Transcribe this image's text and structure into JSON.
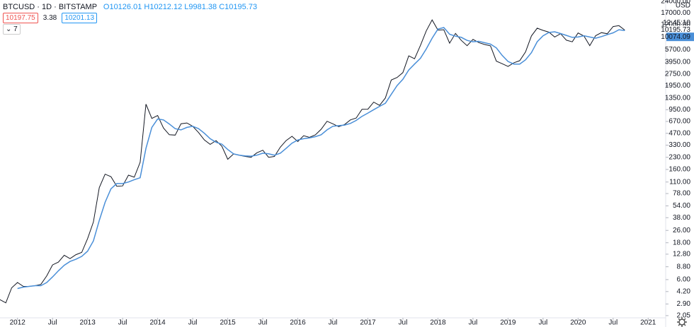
{
  "header": {
    "symbol": "BTCUSD · 1D · BITSTAMP",
    "open": "O10126.01",
    "high": "H10212.12",
    "low": "L9981.38",
    "close": "C10195.73",
    "bid": "10197.75",
    "spread": "3.38",
    "ask": "10201.13",
    "indicator_count": "7"
  },
  "chart_data": {
    "type": "line",
    "log_scale": true,
    "grid": false,
    "currency": "USD",
    "time": "12:45:10",
    "x": [
      "2011-10",
      "2011-11",
      "2011-12",
      "2012-01",
      "2012-02",
      "2012-03",
      "2012-04",
      "2012-05",
      "2012-06",
      "2012-07",
      "2012-08",
      "2012-09",
      "2012-10",
      "2012-11",
      "2012-12",
      "2013-01",
      "2013-02",
      "2013-03",
      "2013-04",
      "2013-05",
      "2013-06",
      "2013-07",
      "2013-08",
      "2013-09",
      "2013-10",
      "2013-11",
      "2013-12",
      "2014-01",
      "2014-02",
      "2014-03",
      "2014-04",
      "2014-05",
      "2014-06",
      "2014-07",
      "2014-08",
      "2014-09",
      "2014-10",
      "2014-11",
      "2014-12",
      "2015-01",
      "2015-02",
      "2015-03",
      "2015-04",
      "2015-05",
      "2015-06",
      "2015-07",
      "2015-08",
      "2015-09",
      "2015-10",
      "2015-11",
      "2015-12",
      "2016-01",
      "2016-02",
      "2016-03",
      "2016-04",
      "2016-05",
      "2016-06",
      "2016-07",
      "2016-08",
      "2016-09",
      "2016-10",
      "2016-11",
      "2016-12",
      "2017-01",
      "2017-02",
      "2017-03",
      "2017-04",
      "2017-05",
      "2017-06",
      "2017-07",
      "2017-08",
      "2017-09",
      "2017-10",
      "2017-11",
      "2017-12",
      "2018-01",
      "2018-02",
      "2018-03",
      "2018-04",
      "2018-05",
      "2018-06",
      "2018-07",
      "2018-08",
      "2018-09",
      "2018-10",
      "2018-11",
      "2018-12",
      "2019-01",
      "2019-02",
      "2019-03",
      "2019-04",
      "2019-05",
      "2019-06",
      "2019-07",
      "2019-08",
      "2019-09",
      "2019-10",
      "2019-11",
      "2019-12",
      "2020-01",
      "2020-02",
      "2020-03",
      "2020-04",
      "2020-05",
      "2020-06",
      "2020-07",
      "2020-08",
      "2020-09"
    ],
    "series": [
      {
        "color": "#131722",
        "values": [
          3.3,
          3.0,
          4.7,
          5.5,
          4.9,
          4.9,
          5.0,
          5.2,
          6.7,
          9.3,
          10.1,
          12.4,
          11.2,
          12.6,
          13.5,
          20.4,
          33.4,
          93,
          139,
          129,
          97,
          98,
          135,
          127,
          198,
          1120,
          732,
          800,
          550,
          450,
          445,
          625,
          640,
          580,
          480,
          385,
          338,
          378,
          320,
          217,
          254,
          244,
          236,
          230,
          263,
          284,
          230,
          236,
          311,
          378,
          430,
          368,
          437,
          416,
          448,
          531,
          673,
          624,
          573,
          609,
          700,
          742,
          963,
          965,
          1190,
          1080,
          1348,
          2300,
          2480,
          2870,
          4730,
          4340,
          6450,
          9950,
          13800,
          10200,
          10300,
          6900,
          9240,
          7490,
          6400,
          7730,
          7020,
          6630,
          6370,
          4040,
          3740,
          3450,
          3850,
          4100,
          5320,
          8570,
          10800,
          10100,
          9600,
          8300,
          9150,
          7550,
          7190,
          9350,
          8540,
          6410,
          8630,
          9450,
          9140,
          11330,
          11650,
          10195.73
        ]
      },
      {
        "color": "#4a8fd8",
        "values": [
          null,
          null,
          null,
          4.6,
          4.8,
          4.9,
          5.0,
          5.0,
          5.5,
          6.5,
          7.8,
          9.2,
          10.3,
          11.0,
          12.0,
          14,
          19,
          35,
          60,
          90,
          105,
          105,
          110,
          118,
          125,
          300,
          560,
          720,
          700,
          620,
          540,
          520,
          560,
          580,
          540,
          470,
          400,
          360,
          340,
          290,
          255,
          245,
          240,
          238,
          245,
          260,
          255,
          245,
          260,
          300,
          350,
          385,
          400,
          410,
          425,
          450,
          520,
          580,
          590,
          600,
          630,
          690,
          780,
          860,
          950,
          1050,
          1150,
          1500,
          1950,
          2350,
          3100,
          3700,
          4400,
          5800,
          8000,
          10500,
          11000,
          9000,
          8500,
          8200,
          7500,
          7200,
          7300,
          7000,
          6700,
          6000,
          4800,
          4000,
          3700,
          3700,
          4200,
          5200,
          7200,
          8600,
          9500,
          9700,
          9200,
          8700,
          8200,
          8300,
          8600,
          8300,
          8000,
          8400,
          8900,
          9400,
          10300,
          10074.09
        ]
      }
    ],
    "xlim": [
      "2011-10",
      "2021-04"
    ],
    "xticks": [
      {
        "value": "2012-01",
        "label": "2012"
      },
      {
        "value": "2012-07",
        "label": "Jul"
      },
      {
        "value": "2013-01",
        "label": "2013"
      },
      {
        "value": "2013-07",
        "label": "Jul"
      },
      {
        "value": "2014-01",
        "label": "2014"
      },
      {
        "value": "2014-07",
        "label": "Jul"
      },
      {
        "value": "2015-01",
        "label": "2015"
      },
      {
        "value": "2015-07",
        "label": "Jul"
      },
      {
        "value": "2016-01",
        "label": "2016"
      },
      {
        "value": "2016-07",
        "label": "Jul"
      },
      {
        "value": "2017-01",
        "label": "2017"
      },
      {
        "value": "2017-07",
        "label": "Jul"
      },
      {
        "value": "2018-01",
        "label": "2018"
      },
      {
        "value": "2018-07",
        "label": "Jul"
      },
      {
        "value": "2019-01",
        "label": "2019"
      },
      {
        "value": "2019-07",
        "label": "Jul"
      },
      {
        "value": "2020-01",
        "label": "2020"
      },
      {
        "value": "2020-07",
        "label": "Jul"
      },
      {
        "value": "2021-01",
        "label": "2021"
      }
    ],
    "ylim": [
      1.92,
      25000
    ],
    "yticks": [
      {
        "value": 24000,
        "label": "24000.00"
      },
      {
        "value": 17000,
        "label": "17000.00"
      },
      {
        "value": 12000,
        "label": "12000.00"
      },
      {
        "value": 5700,
        "label": "5700.00"
      },
      {
        "value": 3950,
        "label": "3950.00"
      },
      {
        "value": 2750,
        "label": "2750.00"
      },
      {
        "value": 1950,
        "label": "1950.00"
      },
      {
        "value": 1350,
        "label": "1350.00"
      },
      {
        "value": 950,
        "label": "950.00"
      },
      {
        "value": 670,
        "label": "670.00"
      },
      {
        "value": 470,
        "label": "470.00"
      },
      {
        "value": 330,
        "label": "330.00"
      },
      {
        "value": 230,
        "label": "230.00"
      },
      {
        "value": 160,
        "label": "160.00"
      },
      {
        "value": 110,
        "label": "110.00"
      },
      {
        "value": 78,
        "label": "78.00"
      },
      {
        "value": 54,
        "label": "54.00"
      },
      {
        "value": 38,
        "label": "38.00"
      },
      {
        "value": 26,
        "label": "26.00"
      },
      {
        "value": 18,
        "label": "18.00"
      },
      {
        "value": 12.8,
        "label": "12.80"
      },
      {
        "value": 8.8,
        "label": "8.80"
      },
      {
        "value": 6,
        "label": "6.00"
      },
      {
        "value": 4.2,
        "label": "4.20"
      },
      {
        "value": 2.9,
        "label": "2.90"
      },
      {
        "value": 2.05,
        "label": "2.05"
      }
    ]
  }
}
